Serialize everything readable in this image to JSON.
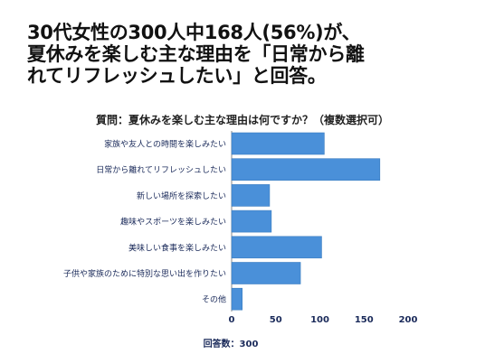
{
  "headline": {
    "line1": "30代女性の300人中168人(56%)が、",
    "line2": "夏休みを楽しむ主な理由を「日常から離",
    "line3": "れてリフレッシュしたい」と回答。"
  },
  "footer": {
    "respondents": "回答数：300"
  },
  "colors": {
    "bar": "#4a90d9",
    "bar_stroke": "#3a7cc0",
    "label": "#1a2a5a",
    "axis": "#888888"
  },
  "chart_data": {
    "type": "bar",
    "orientation": "horizontal",
    "title": "質問：夏休みを楽しむ主な理由は何ですか？（複数選択可）",
    "categories": [
      "家族や友人との時間を楽しみたい",
      "日常から離れてリフレッシュしたい",
      "新しい場所を探索したい",
      "趣味やスポーツを楽しみたい",
      "美味しい食事を楽しみたい",
      "子供や家族のために特別な思い出を作りたい",
      "その他"
    ],
    "values": [
      105,
      168,
      43,
      45,
      102,
      78,
      12
    ],
    "xlim": [
      0,
      200
    ],
    "xticks": [
      0,
      50,
      100,
      150,
      200
    ],
    "grid": false,
    "legend": "none"
  }
}
